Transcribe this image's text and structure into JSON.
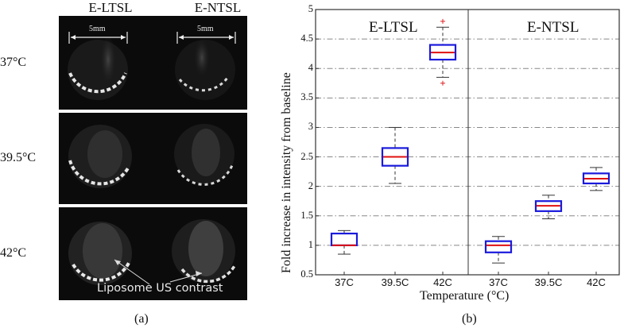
{
  "figure_a": {
    "caption": "(a)",
    "columns": [
      "E-LTSL",
      "E-NTSL"
    ],
    "rows": [
      "37°C",
      "39.5°C",
      "42°C"
    ],
    "scale_bar_label": "5mm",
    "annotation": "Liposome US contrast"
  },
  "figure_b": {
    "caption": "(b)"
  },
  "chart_data": {
    "type": "box",
    "title": "",
    "xlabel": "Temperature (°C)",
    "ylabel": "Fold increase in intensity from baseline",
    "ylim": [
      0.5,
      5
    ],
    "yticks": [
      "0.5",
      "1",
      "1.5",
      "2",
      "2.5",
      "3",
      "3.5",
      "4",
      "4.5",
      "5"
    ],
    "grid": "horizontal dash-dot",
    "groups": [
      "E-LTSL",
      "E-NTSL"
    ],
    "categories": [
      "37C",
      "39.5C",
      "42C",
      "37C",
      "39.5C",
      "42C"
    ],
    "series": [
      {
        "name": "E-LTSL",
        "boxes": [
          {
            "label": "37C",
            "whisker_low": 0.85,
            "q1": 1.0,
            "median": 1.0,
            "q3": 1.2,
            "whisker_high": 1.25,
            "outliers": []
          },
          {
            "label": "39.5C",
            "whisker_low": 2.05,
            "q1": 2.35,
            "median": 2.5,
            "q3": 2.65,
            "whisker_high": 3.0,
            "outliers": []
          },
          {
            "label": "42C",
            "whisker_low": 3.85,
            "q1": 4.15,
            "median": 4.27,
            "q3": 4.4,
            "whisker_high": 4.7,
            "outliers": [
              3.75,
              4.8
            ]
          }
        ]
      },
      {
        "name": "E-NTSL",
        "boxes": [
          {
            "label": "37C",
            "whisker_low": 0.7,
            "q1": 0.88,
            "median": 1.0,
            "q3": 1.07,
            "whisker_high": 1.15,
            "outliers": []
          },
          {
            "label": "39.5C",
            "whisker_low": 1.45,
            "q1": 1.58,
            "median": 1.67,
            "q3": 1.75,
            "whisker_high": 1.85,
            "outliers": []
          },
          {
            "label": "42C",
            "whisker_low": 1.93,
            "q1": 2.05,
            "median": 2.13,
            "q3": 2.22,
            "whisker_high": 2.32,
            "outliers": []
          }
        ]
      }
    ],
    "colors": {
      "box": "#1a1adc",
      "median": "#e01010",
      "whisker": "#333333",
      "outlier": "#e02020"
    }
  }
}
